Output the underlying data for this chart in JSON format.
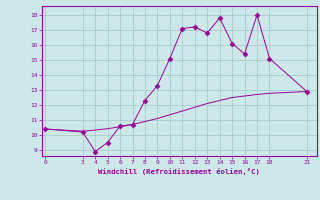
{
  "x": [
    0,
    3,
    4,
    5,
    6,
    7,
    8,
    9,
    10,
    11,
    12,
    13,
    14,
    15,
    16,
    17,
    18,
    21
  ],
  "y_main": [
    10.4,
    10.2,
    8.9,
    9.5,
    10.6,
    10.7,
    12.3,
    13.3,
    15.1,
    17.1,
    17.2,
    16.8,
    17.8,
    16.1,
    15.4,
    18.0,
    15.1,
    12.9
  ],
  "y_trend": [
    10.4,
    10.25,
    10.33,
    10.42,
    10.55,
    10.7,
    10.9,
    11.1,
    11.35,
    11.6,
    11.85,
    12.1,
    12.3,
    12.5,
    12.6,
    12.7,
    12.78,
    12.9
  ],
  "line_color": "#990099",
  "bg_color": "#cce8e8",
  "grid_color": "#aacccc",
  "xlabel": "Windchill (Refroidissement éolien,°C)",
  "xticks": [
    0,
    3,
    4,
    5,
    6,
    7,
    8,
    9,
    10,
    11,
    12,
    13,
    14,
    15,
    16,
    17,
    18,
    21
  ],
  "yticks": [
    9,
    10,
    11,
    12,
    13,
    14,
    15,
    16,
    17,
    18
  ],
  "ylim": [
    8.6,
    18.6
  ],
  "xlim": [
    -0.3,
    21.8
  ]
}
